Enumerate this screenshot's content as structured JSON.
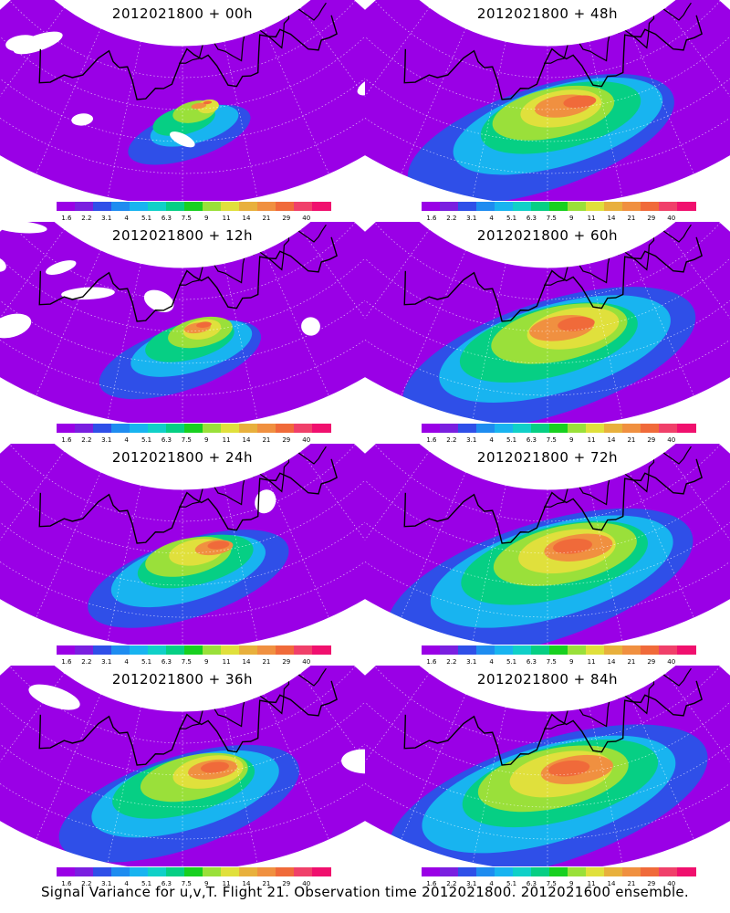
{
  "panels": [
    {
      "title": "2012021800 + 00h",
      "lead": "00h",
      "intensity": 0.2
    },
    {
      "title": "2012021800 + 48h",
      "lead": "48h",
      "intensity": 0.75
    },
    {
      "title": "2012021800 + 12h",
      "lead": "12h",
      "intensity": 0.35
    },
    {
      "title": "2012021800 + 60h",
      "lead": "60h",
      "intensity": 0.85
    },
    {
      "title": "2012021800 + 24h",
      "lead": "24h",
      "intensity": 0.5
    },
    {
      "title": "2012021800 + 72h",
      "lead": "72h",
      "intensity": 0.9
    },
    {
      "title": "2012021800 + 36h",
      "lead": "36h",
      "intensity": 0.65
    },
    {
      "title": "2012021800 + 84h",
      "lead": "84h",
      "intensity": 0.95
    }
  ],
  "colorbar": {
    "labels": [
      "1.6",
      "2.2",
      "3.1",
      "4",
      "5.1",
      "6.3",
      "7.5",
      "9",
      "11",
      "14",
      "21",
      "29",
      "40"
    ],
    "colors": [
      "#9a00e6",
      "#7a1fe0",
      "#2f4fe8",
      "#1e8cf0",
      "#18b4f0",
      "#10d0c8",
      "#06cf84",
      "#18d020",
      "#9ae03a",
      "#e0e03c",
      "#e8b03c",
      "#f09040",
      "#f06a3a",
      "#f0406a",
      "#f0106e"
    ]
  },
  "footer": "Signal Variance for u,v,T. Flight 21. Observation time 2012021800. 2012021600 ensemble."
}
